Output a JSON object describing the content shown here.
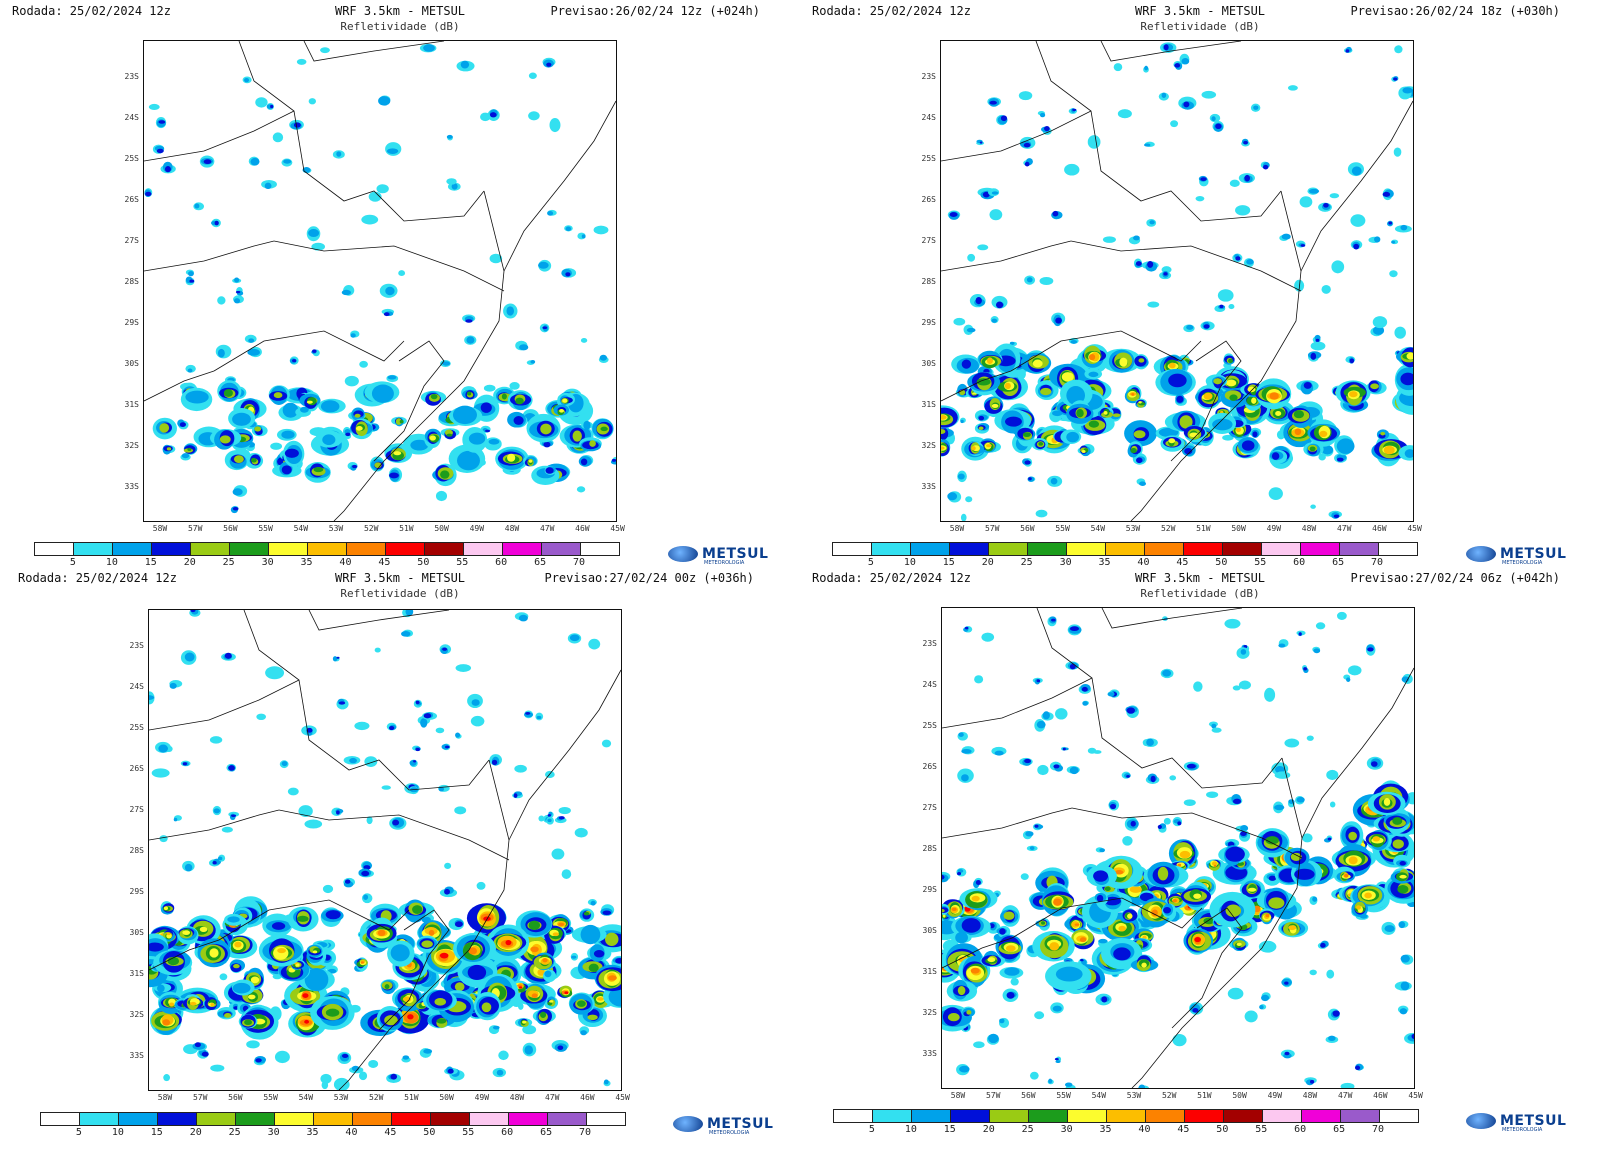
{
  "panels": [
    {
      "rodada": "Rodada: 25/02/2024 12z",
      "model": "WRF 3.5km - METSUL",
      "field": "Refletividade (dB)",
      "previsao": "Previsao:26/02/24 12z (+024h)",
      "intensity": 0.3
    },
    {
      "rodada": "Rodada: 25/02/2024 12z",
      "model": "WRF 3.5km - METSUL",
      "field": "Refletividade (dB)",
      "previsao": "Previsao:26/02/24 18z (+030h)",
      "intensity": 0.55
    },
    {
      "rodada": "Rodada: 25/02/2024 12z",
      "model": "WRF 3.5km - METSUL",
      "field": "Refletividade (dB)",
      "previsao": "Previsao:27/02/24 00z (+036h)",
      "intensity": 0.75
    },
    {
      "rodada": "Rodada: 25/02/2024 12z",
      "model": "WRF 3.5km - METSUL",
      "field": "Refletividade (dB)",
      "previsao": "Previsao:27/02/24 06z (+042h)",
      "intensity": 0.7
    }
  ],
  "lat_labels": [
    "23S",
    "24S",
    "25S",
    "26S",
    "27S",
    "28S",
    "29S",
    "30S",
    "31S",
    "32S",
    "33S"
  ],
  "lon_labels": [
    "58W",
    "57W",
    "56W",
    "55W",
    "54W",
    "53W",
    "52W",
    "51W",
    "50W",
    "49W",
    "48W",
    "47W",
    "46W",
    "45W"
  ],
  "colorbar": {
    "labels": [
      "5",
      "10",
      "15",
      "20",
      "25",
      "30",
      "35",
      "40",
      "45",
      "50",
      "55",
      "60",
      "65",
      "70"
    ],
    "colors": [
      "#ffffff",
      "#33e0f0",
      "#00a2ea",
      "#0010d9",
      "#9acb14",
      "#1c9c1c",
      "#fcfc2e",
      "#fcbe00",
      "#fc8200",
      "#fc0000",
      "#a30000",
      "#fcc8f0",
      "#f000d8",
      "#9a5acb",
      "#ffffff"
    ]
  },
  "logo": {
    "text": "METSUL",
    "tagline": "METEOROLOGIA"
  }
}
